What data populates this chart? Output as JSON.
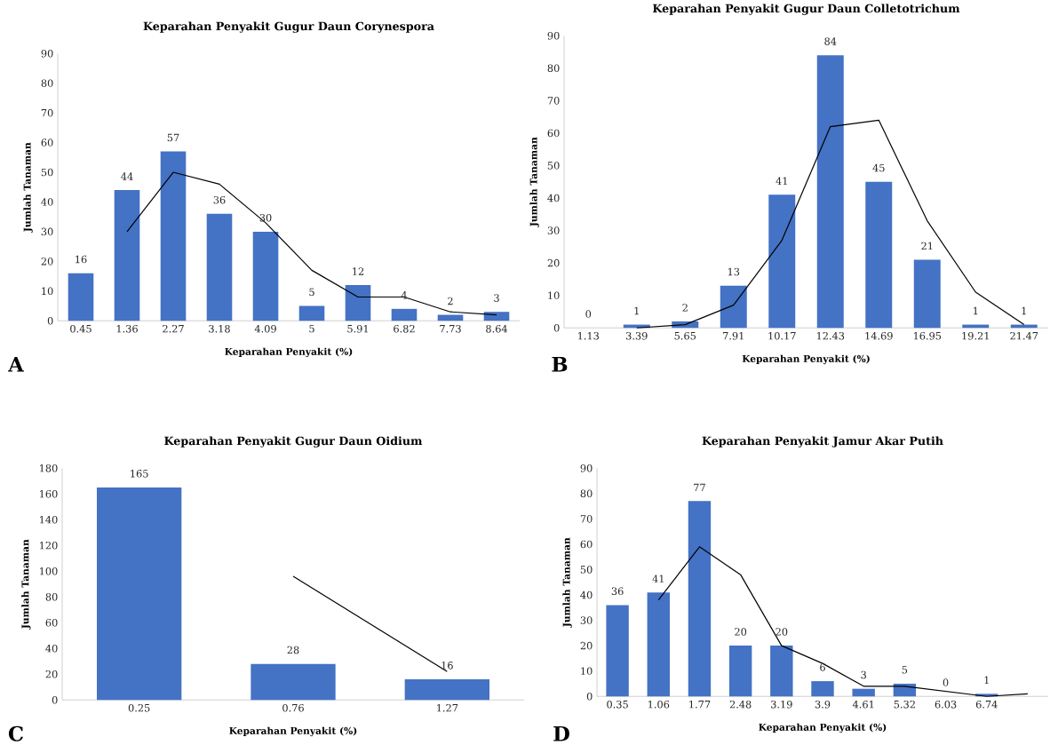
{
  "chart_data": [
    {
      "type": "bar",
      "title": "Keparahan Penyakit Gugur Daun Corynespora",
      "xlabel": "Keparahan Penyakit (%)",
      "ylabel": "Jumlah Tanaman",
      "annotations": [
        "A"
      ],
      "categories": [
        "0.45",
        "1.36",
        "2.27",
        "3.18",
        "4.09",
        "5",
        "5.91",
        "6.82",
        "7.73",
        "8.64"
      ],
      "marker": "none",
      "ylim": [
        0,
        90
      ],
      "yticks": [
        0,
        10,
        20,
        30,
        40,
        50,
        60,
        70,
        80,
        90
      ],
      "series": [
        {
          "color": "#4472c4",
          "values": [
            16,
            44,
            57,
            36,
            30,
            5,
            12,
            4,
            2,
            3
          ],
          "value_labels": [
            "16",
            "44",
            "57",
            "36",
            "30",
            "5",
            "12",
            "4",
            "2",
            "3"
          ]
        },
        {
          "type": "line",
          "color": "#000000",
          "values": [
            null,
            30,
            50,
            46,
            33,
            17,
            8,
            8,
            3,
            2
          ]
        }
      ]
    },
    {
      "type": "bar",
      "title": "Keparahan Penyakit Gugur Daun Colletotrichum",
      "xlabel": "Keparahan Penyakit (%)",
      "ylabel": "Jumlah Tanaman",
      "annotations": [
        "B"
      ],
      "categories": [
        "1.13",
        "3.39",
        "5.65",
        "7.91",
        "10.17",
        "12.43",
        "14.69",
        "16.95",
        "19.21",
        "21.47"
      ],
      "marker": "none",
      "ylim": [
        0,
        90
      ],
      "yticks": [
        0,
        10,
        20,
        30,
        40,
        50,
        60,
        70,
        80,
        90
      ],
      "series": [
        {
          "color": "#4472c4",
          "values": [
            0,
            1,
            2,
            13,
            41,
            84,
            45,
            21,
            1,
            1
          ],
          "value_labels": [
            "0",
            "1",
            "2",
            "13",
            "41",
            "84",
            "45",
            "21",
            "1",
            "1"
          ]
        },
        {
          "type": "line",
          "color": "#000000",
          "values": [
            null,
            0,
            1,
            7,
            27,
            62,
            64,
            33,
            11,
            1
          ]
        }
      ]
    },
    {
      "type": "bar",
      "title": "Keparahan Penyakit Gugur Daun Oidium",
      "xlabel": "Keparahan Penyakit (%)",
      "ylabel": "Jumlah Tanaman",
      "annotations": [
        "C"
      ],
      "categories": [
        "0.25",
        "0.76",
        "1.27"
      ],
      "marker": "none",
      "ylim": [
        0,
        180
      ],
      "yticks": [
        0,
        20,
        40,
        60,
        80,
        100,
        120,
        140,
        160,
        180
      ],
      "series": [
        {
          "color": "#4472c4",
          "values": [
            165,
            28,
            16
          ],
          "value_labels": [
            "165",
            "28",
            "16"
          ]
        },
        {
          "type": "line",
          "color": "#000000",
          "values": [
            null,
            96,
            22
          ]
        }
      ]
    },
    {
      "type": "bar",
      "title": "Keparahan Penyakit Jamur Akar Putih",
      "xlabel": "Keparahan Penyakit (%)",
      "ylabel": "Jumlah Tanaman",
      "annotations": [
        "D"
      ],
      "categories": [
        "0.35",
        "1.06",
        "1.77",
        "2.48",
        "3.19",
        "3.9",
        "4.61",
        "5.32",
        "6.03",
        "6.74",
        null
      ],
      "marker": "none",
      "ylim": [
        0,
        90
      ],
      "yticks": [
        0,
        10,
        20,
        30,
        40,
        50,
        60,
        70,
        80,
        90
      ],
      "series": [
        {
          "color": "#4472c4",
          "values": [
            36,
            41,
            77,
            20,
            20,
            6,
            3,
            5,
            0,
            1,
            null
          ],
          "value_labels": [
            "36",
            "41",
            "77",
            "20",
            "20",
            "6",
            "3",
            "5",
            "0",
            "1",
            null
          ]
        },
        {
          "type": "line",
          "color": "#000000",
          "values": [
            null,
            38,
            59,
            48,
            20,
            13,
            4,
            4,
            2,
            0,
            1
          ]
        }
      ]
    }
  ]
}
